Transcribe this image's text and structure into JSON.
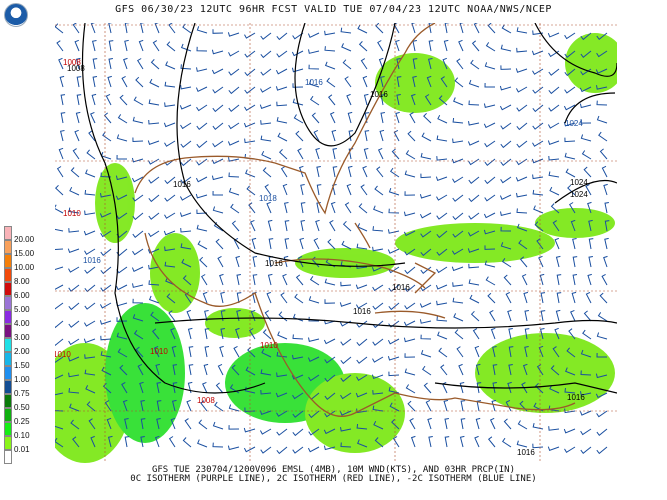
{
  "header": {
    "title": "GFS 06/30/23 12UTC 96HR FCST VALID TUE 07/04/23 12UTC NOAA/NWS/NCEP",
    "logo": "NOAA"
  },
  "legend": {
    "labels": [
      "20.00",
      "15.00",
      "10.00",
      "8.00",
      "6.00",
      "5.00",
      "4.00",
      "3.00",
      "2.00",
      "1.50",
      "1.00",
      "0.75",
      "0.50",
      "0.25",
      "0.10",
      "0.01"
    ],
    "colors": [
      "#f9b3b8",
      "#f8a15c",
      "#f57f0a",
      "#f24a0b",
      "#d00b0b",
      "#9b74d6",
      "#8a2be2",
      "#7a1080",
      "#1fe0e6",
      "#17b6e8",
      "#1e8ff0",
      "#124d94",
      "#0b7a0b",
      "#10b010",
      "#16ee16",
      "#8af41a",
      "#ffffff"
    ]
  },
  "pressure_labels": [
    {
      "text": "1008",
      "color": "#c00000"
    },
    {
      "text": "1008",
      "color": "#000"
    },
    {
      "text": "1016",
      "color": "#1a4fa0"
    },
    {
      "text": "1016",
      "color": "#000"
    },
    {
      "text": "1024",
      "color": "#1a4fa0"
    },
    {
      "text": "1024",
      "color": "#000"
    },
    {
      "text": "1024",
      "color": "#000"
    },
    {
      "text": "1016",
      "color": "#000"
    },
    {
      "text": "1018",
      "color": "#1a4fa0"
    },
    {
      "text": "1010",
      "color": "#c00000"
    },
    {
      "text": "1016",
      "color": "#1a4fa0"
    },
    {
      "text": "1016",
      "color": "#000"
    },
    {
      "text": "1016",
      "color": "#000"
    },
    {
      "text": "1016",
      "color": "#000"
    },
    {
      "text": "1010",
      "color": "#c00000"
    },
    {
      "text": "1010",
      "color": "#c00000"
    },
    {
      "text": "1008",
      "color": "#c00000"
    },
    {
      "text": "1016",
      "color": "#000"
    },
    {
      "text": "1016",
      "color": "#000"
    },
    {
      "text": "1010",
      "color": "#c00000"
    }
  ],
  "caption": {
    "line1": "GFS TUE 230704/1200V096 EMSL (4MB), 10M WND(KTS), AND 03HR PRCP(IN)",
    "line2": "0C ISOTHERM (PURPLE LINE), 2C ISOTHERM (RED LINE), -2C ISOTHERM (BLUE LINE)"
  }
}
